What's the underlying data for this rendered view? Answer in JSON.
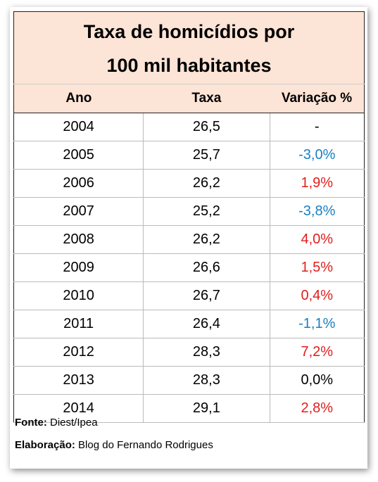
{
  "title": [
    "Taxa de homicídios por",
    "100 mil habitantes"
  ],
  "table": {
    "header": [
      "Ano",
      "Taxa",
      "Variação %"
    ],
    "rows": [
      [
        "2004",
        "26,5",
        "-"
      ],
      [
        "2005",
        "25,7",
        "-3,0%"
      ],
      [
        "2006",
        "26,2",
        "1,9%"
      ],
      [
        "2007",
        "25,2",
        "-3,8%"
      ],
      [
        "2008",
        "26,2",
        "4,0%"
      ],
      [
        "2009",
        "26,6",
        "1,5%"
      ],
      [
        "2010",
        "26,7",
        "0,4%"
      ],
      [
        "2011",
        "26,4",
        "-1,1%"
      ],
      [
        "2012",
        "28,3",
        "7,2%"
      ],
      [
        "2013",
        "28,3",
        "0,0%"
      ],
      [
        "2014",
        "29,1",
        "2,8%"
      ]
    ]
  },
  "footer": [
    {
      "label": "Fonte:",
      "text": "Diest/Ipea"
    },
    {
      "label": "Elaboração:",
      "text": "Blog do Fernando Rodrigues"
    }
  ]
}
